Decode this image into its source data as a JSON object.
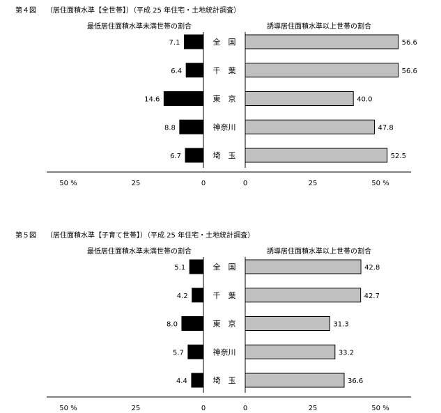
{
  "chart_data": [
    {
      "type": "bar",
      "figure_label": "第４図",
      "title": "（居住面積水準【全世帯】）（平成 25 年住宅・土地統計調査）",
      "left_header": "最低居住面積水準未満世帯の割合",
      "right_header": "誘導居住面積水準以上世帯の割合",
      "categories": [
        "全　国",
        "千　葉",
        "東　京",
        "神奈川",
        "埼　玉"
      ],
      "series": [
        {
          "name": "最低居住面積水準未満世帯の割合",
          "values": [
            7.1,
            6.4,
            14.6,
            8.8,
            6.7
          ],
          "color": "#000000"
        },
        {
          "name": "誘導居住面積水準以上世帯の割合",
          "values": [
            56.6,
            56.6,
            40.0,
            47.8,
            52.5
          ],
          "color": "#c0c0c0"
        }
      ],
      "left_ticks": [
        "50 %",
        "25",
        "0"
      ],
      "right_ticks": [
        "0",
        "25",
        "50 %"
      ],
      "xlim": [
        0,
        60
      ]
    },
    {
      "type": "bar",
      "figure_label": "第５図",
      "title": "（居住面積水準【子育て世帯】）（平成 25 年住宅・土地統計調査）",
      "left_header": "最低居住面積水準未満世帯の割合",
      "right_header": "誘導居住面積水準以上世帯の割合",
      "categories": [
        "全　国",
        "千　葉",
        "東　京",
        "神奈川",
        "埼　玉"
      ],
      "series": [
        {
          "name": "最低居住面積水準未満世帯の割合",
          "values": [
            5.1,
            4.2,
            8.0,
            5.7,
            4.4
          ],
          "color": "#000000"
        },
        {
          "name": "誘導居住面積水準以上世帯の割合",
          "values": [
            42.8,
            42.7,
            31.3,
            33.2,
            36.6
          ],
          "color": "#c0c0c0"
        }
      ],
      "left_ticks": [
        "50 %",
        "25",
        "0"
      ],
      "right_ticks": [
        "0",
        "25",
        "50 %"
      ],
      "xlim": [
        0,
        60
      ]
    }
  ]
}
